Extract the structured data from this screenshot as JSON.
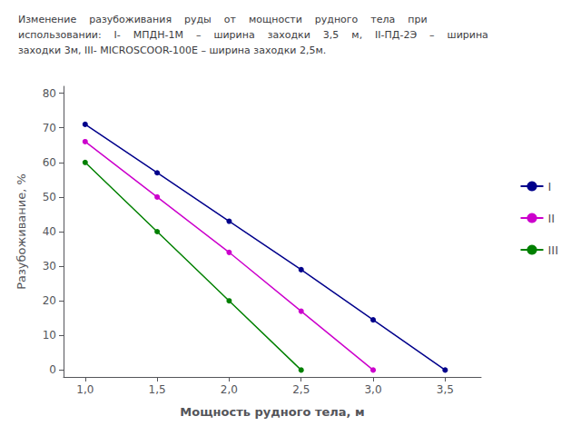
{
  "chart_data": {
    "type": "line",
    "title": "Изменение    разубоживания    руды    от    мощности    рудного    тела    при\nиспользовании:    I-    МПДН-1М    –    ширина    заходки    3,5    м,    II-ПД-2Э    –    ширина\nзаходки 3м, III- MICROSСOOR-100E – ширина заходки 2,5м.",
    "x_label": "Мощность рудного тела, м",
    "y_label": "Разубоживание, %",
    "series": [
      {
        "name": "I",
        "color": "#00008B",
        "marker": "circle",
        "x": [
          1.0,
          1.5,
          2.0,
          2.5,
          3.0,
          3.5
        ],
        "values": [
          71,
          57,
          43,
          29,
          14.5,
          0
        ]
      },
      {
        "name": "II",
        "color": "#CC00CC",
        "marker": "circle",
        "x": [
          1.0,
          1.5,
          2.0,
          2.5,
          3.0
        ],
        "values": [
          66,
          50,
          34,
          17,
          0
        ]
      },
      {
        "name": "III",
        "color": "#008000",
        "marker": "circle",
        "x": [
          1.0,
          1.5,
          2.0,
          2.5
        ],
        "values": [
          60,
          40,
          20,
          0
        ]
      }
    ],
    "xlim": [
      0.85,
      3.75
    ],
    "ylim": [
      -2,
      82
    ],
    "xticks": [
      {
        "value": 1.0,
        "label": "1,0"
      },
      {
        "value": 1.5,
        "label": "1,5"
      },
      {
        "value": 2.0,
        "label": "2,0"
      },
      {
        "value": 2.5,
        "label": "2,5"
      },
      {
        "value": 3.0,
        "label": "3,0"
      },
      {
        "value": 3.5,
        "label": "3,5"
      }
    ],
    "yticks": [
      0,
      10,
      20,
      30,
      40,
      50,
      60,
      70,
      80
    ],
    "grid": false,
    "legend": "right"
  }
}
